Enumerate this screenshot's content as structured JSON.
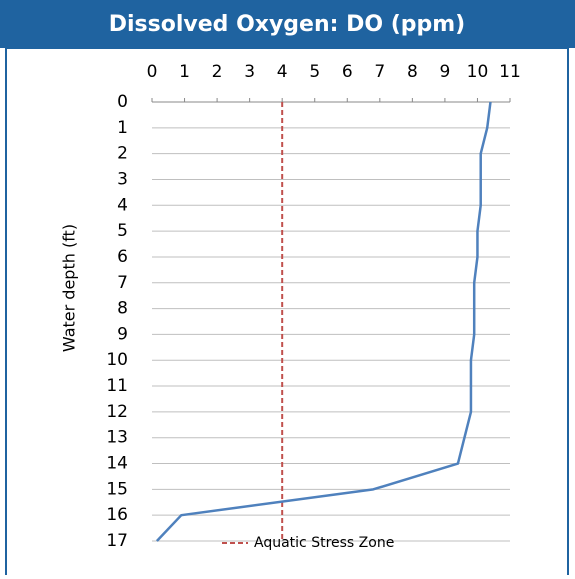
{
  "chart_data": {
    "type": "line",
    "title": "Dissolved Oxygen: DO (ppm)",
    "y_label": "Water depth (ft)",
    "y_inverted": true,
    "series": [
      {
        "name": "DO",
        "color": "#4f81bd",
        "y": [
          0,
          1,
          2,
          3,
          4,
          5,
          6,
          7,
          8,
          9,
          10,
          11,
          12,
          13,
          14,
          15,
          16,
          17
        ],
        "x": [
          10.4,
          10.3,
          10.1,
          10.1,
          10.1,
          10.0,
          10.0,
          9.9,
          9.9,
          9.9,
          9.8,
          9.8,
          9.8,
          9.6,
          9.4,
          6.8,
          0.9,
          0.15
        ]
      }
    ],
    "reference_line": {
      "value": 4,
      "label": "Aquatic Stress Zone",
      "color": "#c0504d"
    },
    "xlim": [
      0,
      11
    ],
    "xticks": [
      0,
      1,
      2,
      3,
      4,
      5,
      6,
      7,
      8,
      9,
      10,
      11
    ],
    "ylim": [
      0,
      17
    ],
    "yticks": [
      0,
      1,
      2,
      3,
      4,
      5,
      6,
      7,
      8,
      9,
      10,
      11,
      12,
      13,
      14,
      15,
      16,
      17
    ],
    "grid": true
  }
}
